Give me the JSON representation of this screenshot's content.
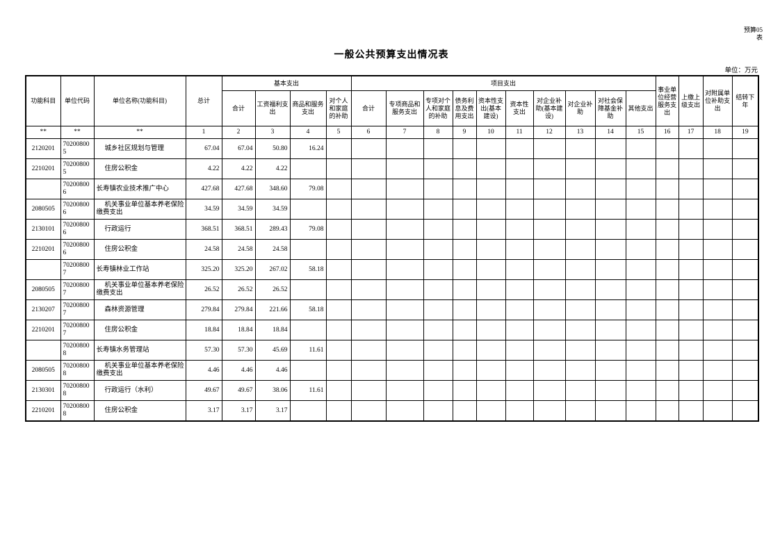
{
  "page": {
    "corner_label": {
      "line1": "预算05",
      "line2": "表"
    },
    "title": "一般公共预算支出情况表",
    "unit_note": "单位：万元"
  },
  "table": {
    "header": {
      "function_code": "功能科目",
      "unit_code": "单位代码",
      "unit_name": "单位名称(功能科目)",
      "grand_total": "总计",
      "group_basic": "基本支出",
      "group_project": "项目支出",
      "basic_cols": [
        "合计",
        "工资福利支出",
        "商品和服务支出",
        "对个人和家庭的补助"
      ],
      "project_cols": [
        "合计",
        "专项商品和服务支出",
        "专项对个人和家庭的补助",
        "债务利息及费用支出",
        "资本性支出(基本建设)",
        "资本性支出",
        "对企业补助(基本建设)",
        "对企业补助",
        "对社会保障基金补助",
        "其他支出"
      ],
      "tail_cols": [
        "事业单位经营服务支出",
        "上缴上级支出",
        "对附属单位补助支出",
        "结转下年"
      ],
      "number_row": [
        "**",
        "**",
        "**",
        "1",
        "2",
        "3",
        "4",
        "5",
        "6",
        "7",
        "8",
        "9",
        "10",
        "11",
        "12",
        "13",
        "14",
        "15",
        "16",
        "17",
        "18",
        "19"
      ]
    },
    "rows": [
      {
        "function_code": "2120201",
        "unit_code": "702008005",
        "name": "城乡社区规划与管理",
        "indent": true,
        "total": "67.04",
        "basic_total": "67.04",
        "wages": "50.80",
        "goods_services": "16.24"
      },
      {
        "function_code": "2210201",
        "unit_code": "702008005",
        "name": "住房公积金",
        "indent": true,
        "total": "4.22",
        "basic_total": "4.22",
        "wages": "4.22",
        "goods_services": ""
      },
      {
        "function_code": "",
        "unit_code": "702008006",
        "name": "长寿镇农业技术推广中心",
        "indent": false,
        "total": "427.68",
        "basic_total": "427.68",
        "wages": "348.60",
        "goods_services": "79.08"
      },
      {
        "function_code": "2080505",
        "unit_code": "702008006",
        "name": "机关事业单位基本养老保险缴费支出",
        "indent": true,
        "total": "34.59",
        "basic_total": "34.59",
        "wages": "34.59",
        "goods_services": ""
      },
      {
        "function_code": "2130101",
        "unit_code": "702008006",
        "name": "行政运行",
        "indent": true,
        "total": "368.51",
        "basic_total": "368.51",
        "wages": "289.43",
        "goods_services": "79.08"
      },
      {
        "function_code": "2210201",
        "unit_code": "702008006",
        "name": "住房公积金",
        "indent": true,
        "total": "24.58",
        "basic_total": "24.58",
        "wages": "24.58",
        "goods_services": ""
      },
      {
        "function_code": "",
        "unit_code": "702008007",
        "name": "长寿镇林业工作站",
        "indent": false,
        "total": "325.20",
        "basic_total": "325.20",
        "wages": "267.02",
        "goods_services": "58.18"
      },
      {
        "function_code": "2080505",
        "unit_code": "702008007",
        "name": "机关事业单位基本养老保险缴费支出",
        "indent": true,
        "total": "26.52",
        "basic_total": "26.52",
        "wages": "26.52",
        "goods_services": ""
      },
      {
        "function_code": "2130207",
        "unit_code": "702008007",
        "name": "森林资源管理",
        "indent": true,
        "total": "279.84",
        "basic_total": "279.84",
        "wages": "221.66",
        "goods_services": "58.18"
      },
      {
        "function_code": "2210201",
        "unit_code": "702008007",
        "name": "住房公积金",
        "indent": true,
        "total": "18.84",
        "basic_total": "18.84",
        "wages": "18.84",
        "goods_services": ""
      },
      {
        "function_code": "",
        "unit_code": "702008008",
        "name": "长寿镇水务管理站",
        "indent": false,
        "total": "57.30",
        "basic_total": "57.30",
        "wages": "45.69",
        "goods_services": "11.61"
      },
      {
        "function_code": "2080505",
        "unit_code": "702008008",
        "name": "机关事业单位基本养老保险缴费支出",
        "indent": true,
        "total": "4.46",
        "basic_total": "4.46",
        "wages": "4.46",
        "goods_services": ""
      },
      {
        "function_code": "2130301",
        "unit_code": "702008008",
        "name": "行政运行（水利）",
        "indent": true,
        "total": "49.67",
        "basic_total": "49.67",
        "wages": "38.06",
        "goods_services": "11.61"
      },
      {
        "function_code": "2210201",
        "unit_code": "702008008",
        "name": "住房公积金",
        "indent": true,
        "total": "3.17",
        "basic_total": "3.17",
        "wages": "3.17",
        "goods_services": ""
      }
    ]
  }
}
